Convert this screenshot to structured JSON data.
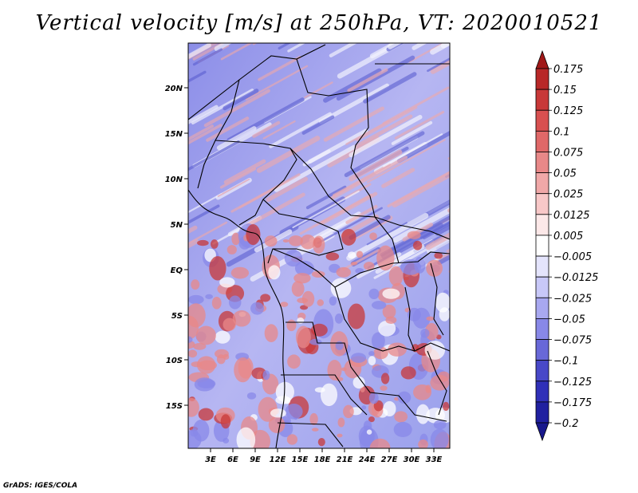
{
  "title": "Vertical velocity [m/s] at 250hPa, VT: 2020010521",
  "credit": "GrADS: IGES/COLA",
  "map": {
    "lat_labels": [
      "20N",
      "15N",
      "10N",
      "5N",
      "EQ",
      "5S",
      "10S",
      "15S"
    ],
    "lon_labels": [
      "3E",
      "6E",
      "9E",
      "12E",
      "15E",
      "18E",
      "21E",
      "24E",
      "27E",
      "30E",
      "33E"
    ]
  },
  "colorbar": {
    "levels": [
      "0.175",
      "0.15",
      "0.125",
      "0.1",
      "0.075",
      "0.05",
      "0.025",
      "0.0125",
      "0.005",
      "−0.005",
      "−0.0125",
      "−0.025",
      "−0.05",
      "−0.075",
      "−0.1",
      "−0.125",
      "−0.175",
      "−0.2"
    ],
    "colors": [
      "#a01818",
      "#b82828",
      "#c83838",
      "#d85050",
      "#e06868",
      "#e88888",
      "#f0a8a8",
      "#f8c8c8",
      "#fce8e8",
      "#ffffff",
      "#e4e4fc",
      "#c8c8f8",
      "#a8a8f0",
      "#8888e8",
      "#6868d8",
      "#4848c8",
      "#3030b8",
      "#2020a0",
      "#18188c"
    ]
  }
}
